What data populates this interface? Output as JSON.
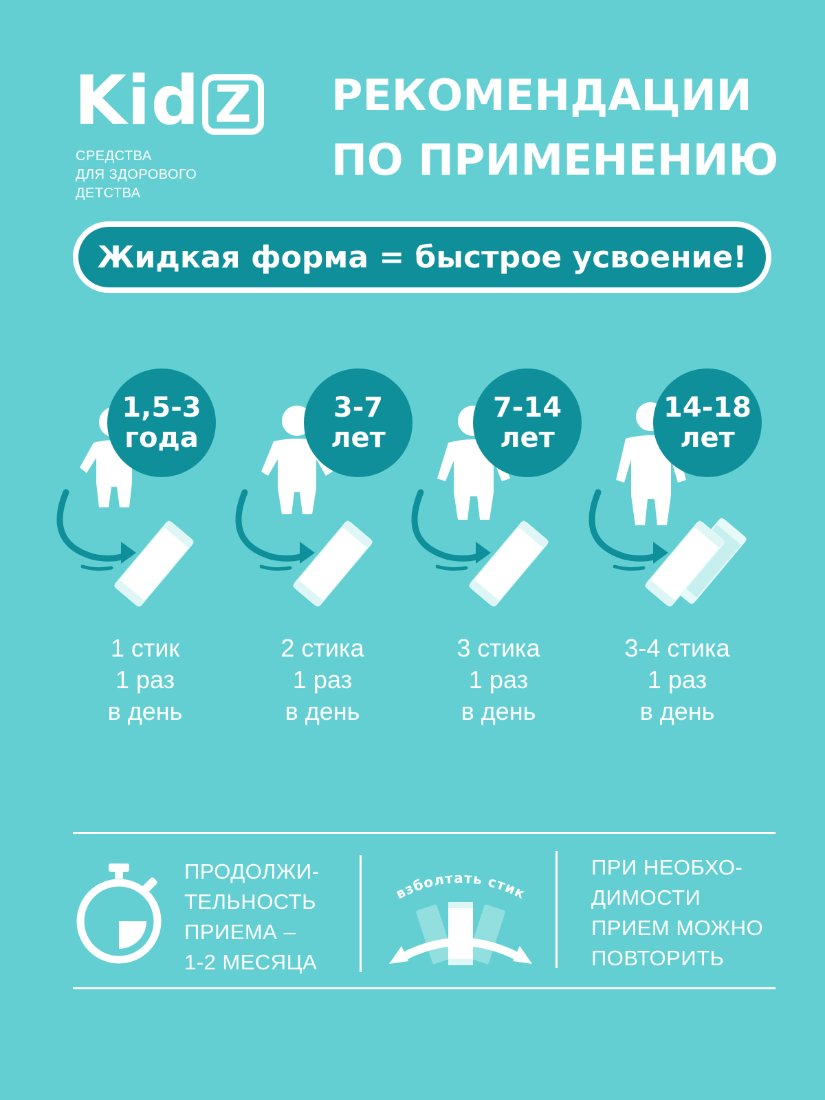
{
  "brand": {
    "name": "Kid",
    "name_box_letter": "Z",
    "tagline": [
      "СРЕДСТВА",
      "ДЛЯ ЗДОРОВОГО",
      "ДЕТСТВА"
    ]
  },
  "title": [
    "РЕКОМЕНДАЦИИ",
    "ПО ПРИМЕНЕНИЮ"
  ],
  "banner": "Жидкая форма = быстрое усвоение!",
  "ages": [
    {
      "age": [
        "1,5-3",
        "года"
      ],
      "dose": [
        "1 стик",
        "1 раз",
        "в день"
      ]
    },
    {
      "age": [
        "3-7",
        "лет"
      ],
      "dose": [
        "2 стика",
        "1 раз",
        "в день"
      ]
    },
    {
      "age": [
        "7-14",
        "лет"
      ],
      "dose": [
        "3 стика",
        "1 раз",
        "в день"
      ]
    },
    {
      "age": [
        "14-18",
        "лет"
      ],
      "dose": [
        "3-4 стика",
        "1 раз",
        "в день"
      ]
    }
  ],
  "footer": {
    "duration": [
      "ПРОДОЛЖИ-",
      "ТЕЛЬНОСТЬ",
      "ПРИЕМА –",
      "1-2 МЕСЯЦА"
    ],
    "shake_label": "взболтать стик",
    "repeat": [
      "ПРИ НЕОБХО-",
      "ДИМОСТИ",
      "ПРИЕМ МОЖНО",
      "ПОВТОРИТЬ"
    ]
  },
  "colors": {
    "background": "#63cfd2",
    "accent": "#0e8f99",
    "text": "#ffffff"
  }
}
